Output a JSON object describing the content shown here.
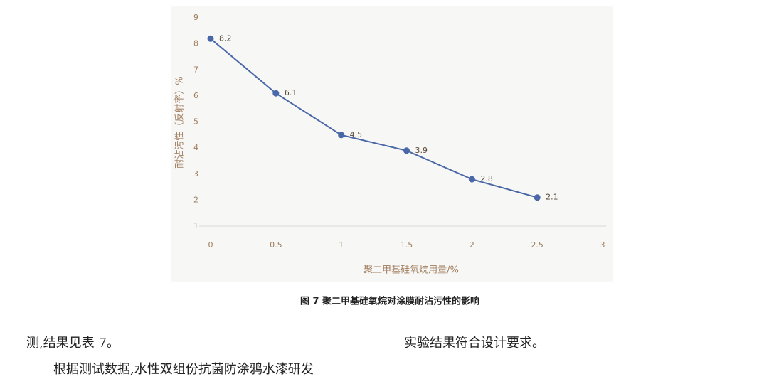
{
  "chart_data": {
    "type": "line",
    "x": [
      0,
      0.5,
      1,
      1.5,
      2,
      2.5
    ],
    "values": [
      8.2,
      6.1,
      4.5,
      3.9,
      2.8,
      2.1
    ],
    "color": "#4a67a8",
    "xlim": [
      0,
      3
    ],
    "xticks": [
      0,
      0.5,
      1,
      1.5,
      2,
      2.5,
      3
    ],
    "ylim": [
      1,
      9
    ],
    "yticks": [
      1,
      2,
      3,
      4,
      5,
      6,
      7,
      8,
      9
    ],
    "x_label": "聚二甲基硅氧烷用量/%",
    "y_label": "耐沾污性（反射率）%"
  },
  "figure_caption": "图 7 聚二甲基硅氧烷对涂膜耐沾污性的影响",
  "body": {
    "left_column": [
      "测,结果见表 7。",
      "根据测试数据,水性双组份抗菌防涂鸦水漆研发"
    ],
    "right_column": [
      "实验结果符合设计要求。"
    ]
  }
}
